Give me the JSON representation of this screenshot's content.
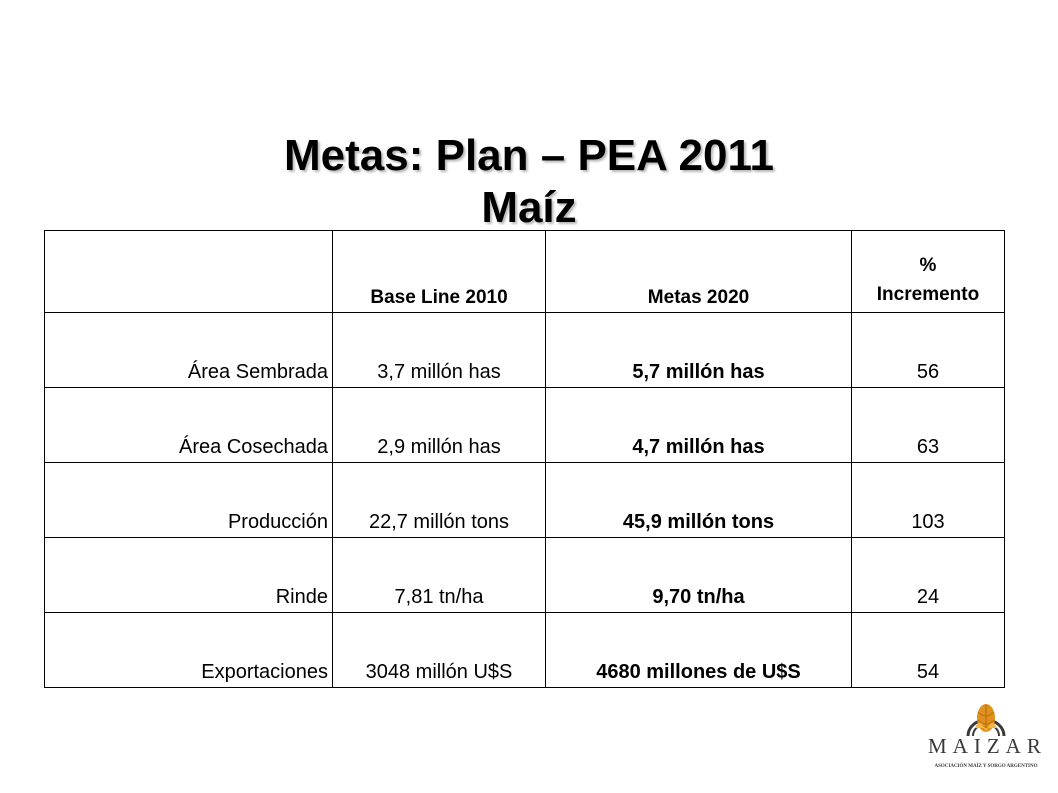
{
  "title": {
    "line1": "Metas: Plan – PEA 2011",
    "line2": "Maíz"
  },
  "table": {
    "headers": {
      "blank": "",
      "base": "Base Line 2010",
      "metas": "Metas 2020",
      "incr_line1": "%",
      "incr_line2": "Incremento"
    },
    "rows": [
      {
        "label": "Área Sembrada",
        "base": "3,7 millón has",
        "meta": "5,7 millón has",
        "incr": "56"
      },
      {
        "label": "Área Cosechada",
        "base": "2,9 millón has",
        "meta": "4,7 millón has",
        "incr": "63"
      },
      {
        "label": "Producción",
        "base": "22,7 millón tons",
        "meta": "45,9 millón tons",
        "incr": "103"
      },
      {
        "label": "Rinde",
        "base": "7,81 tn/ha",
        "meta": "9,70 tn/ha",
        "incr": "24"
      },
      {
        "label": "Exportaciones",
        "base": "3048 millón U$S",
        "meta": "4680 millones de U$S",
        "incr": "54"
      }
    ]
  },
  "logo": {
    "name": "MAIZAR",
    "subtitle": "ASOCIACIÓN MAÍZ Y SORGO ARGENTINO",
    "accent_color": "#e0901c",
    "text_color": "#3a3a3a"
  }
}
